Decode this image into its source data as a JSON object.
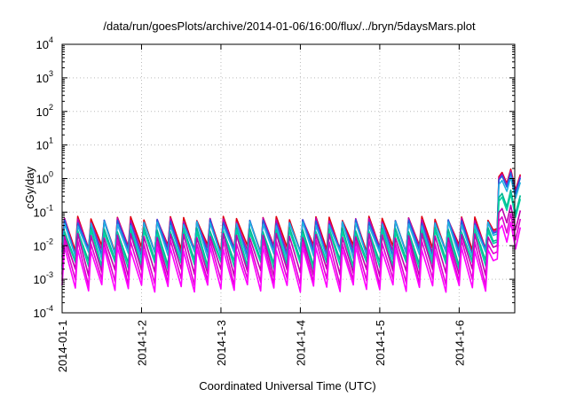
{
  "chart_data": {
    "type": "line",
    "title": "/data/run/goesPlots/archive/2014-01-06/16:00/flux/../bryn/5daysMars.plot",
    "xlabel": "Coordinated Universal Time (UTC)",
    "ylabel": "cGy/day",
    "yscale": "log",
    "ylim": [
      0.0001,
      10000
    ],
    "xlim": [
      0,
      5.7
    ],
    "y_ticks": [
      {
        "value": 0.0001,
        "base": "10",
        "exp": "-4"
      },
      {
        "value": 0.001,
        "base": "10",
        "exp": "-3"
      },
      {
        "value": 0.01,
        "base": "10",
        "exp": "-2"
      },
      {
        "value": 0.1,
        "base": "10",
        "exp": "-1"
      },
      {
        "value": 1,
        "base": "10",
        "exp": "0"
      },
      {
        "value": 10,
        "base": "10",
        "exp": "1"
      },
      {
        "value": 100,
        "base": "10",
        "exp": "2"
      },
      {
        "value": 1000,
        "base": "10",
        "exp": "3"
      },
      {
        "value": 10000,
        "base": "10",
        "exp": "4"
      }
    ],
    "x_ticks": [
      {
        "value": 0,
        "label": "2014-01-1"
      },
      {
        "value": 1,
        "label": "2014-1-2"
      },
      {
        "value": 2,
        "label": "2014-1-3"
      },
      {
        "value": 3,
        "label": "2014-1-4"
      },
      {
        "value": 4,
        "label": "2014-1-5"
      },
      {
        "value": 5,
        "label": "2014-1-6"
      }
    ],
    "grid": true,
    "legend": "none",
    "series": [
      {
        "color": "#e00010",
        "peak": 0.065,
        "trough": 0.0085,
        "storm_peak": 1.9,
        "storm_trough": 0.45
      },
      {
        "color": "#c000b0",
        "peak": 0.058,
        "trough": 0.0072,
        "storm_peak": 1.7,
        "storm_trough": 0.4
      },
      {
        "color": "#2060e0",
        "peak": 0.052,
        "trough": 0.0062,
        "storm_peak": 1.5,
        "storm_trough": 0.35
      },
      {
        "color": "#20b0e0",
        "peak": 0.045,
        "trough": 0.0052,
        "storm_peak": 1.1,
        "storm_trough": 0.26
      },
      {
        "color": "#00b890",
        "peak": 0.03,
        "trough": 0.0032,
        "storm_peak": 0.45,
        "storm_trough": 0.09
      },
      {
        "color": "#00d0a0",
        "peak": 0.026,
        "trough": 0.0026,
        "storm_peak": 0.35,
        "storm_trough": 0.07
      },
      {
        "color": "#c000b0",
        "peak": 0.02,
        "trough": 0.0016,
        "storm_peak": 0.16,
        "storm_trough": 0.03
      },
      {
        "color": "#e000d0",
        "peak": 0.013,
        "trough": 0.00085,
        "storm_peak": 0.09,
        "storm_trough": 0.015
      },
      {
        "color": "#ff00ff",
        "peak": 0.008,
        "trough": 0.00055,
        "storm_peak": 0.05,
        "storm_trough": 0.008
      }
    ],
    "series_shape": {
      "cycles_per_day": 6,
      "storm_onset_x": 5.48
    }
  }
}
